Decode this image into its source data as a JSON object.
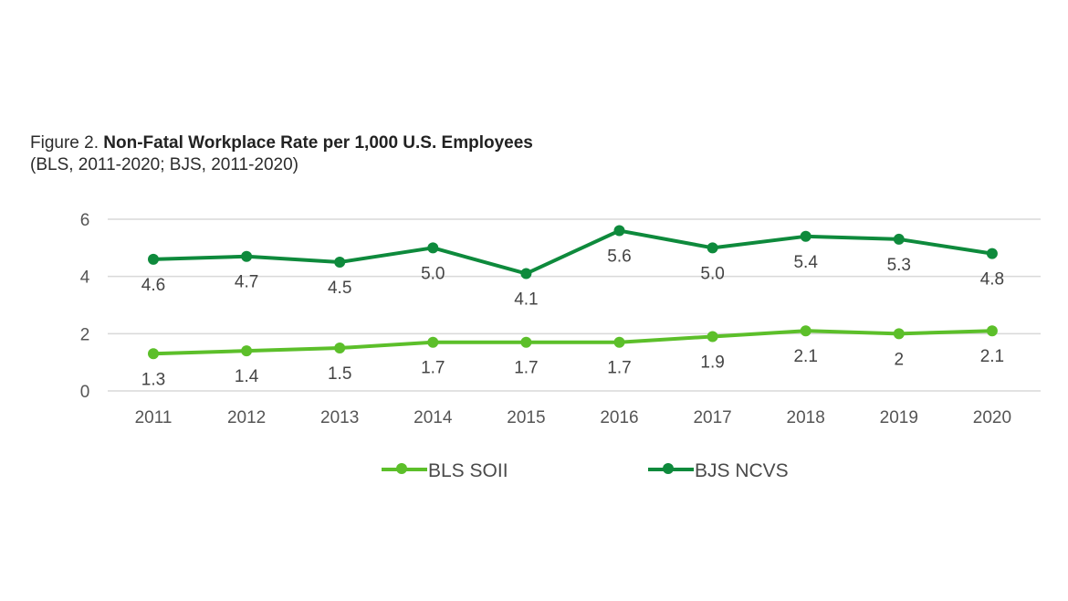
{
  "figure": {
    "prefix": "Figure 2. ",
    "title": "Non-Fatal Workplace Rate per 1,000 U.S. Employees",
    "subtitle": "(BLS, 2011-2020; BJS, 2011-2020)"
  },
  "chart_data": {
    "type": "line",
    "title": "Non-Fatal Workplace Rate per 1,000 U.S. Employees",
    "subtitle": "(BLS, 2011-2020; BJS, 2011-2020)",
    "xlabel": "",
    "ylabel": "",
    "categories": [
      "2011",
      "2012",
      "2013",
      "2014",
      "2015",
      "2016",
      "2017",
      "2018",
      "2019",
      "2020"
    ],
    "ylim": [
      0,
      6
    ],
    "yticks": [
      0,
      2,
      4,
      6
    ],
    "grid": true,
    "legend_position": "bottom",
    "series": [
      {
        "name": "BLS SOII",
        "color": "#5cbf2a",
        "values": [
          1.3,
          1.4,
          1.5,
          1.7,
          1.7,
          1.7,
          1.9,
          2.1,
          2.0,
          2.1
        ],
        "labels": [
          "1.3",
          "1.4",
          "1.5",
          "1.7",
          "1.7",
          "1.7",
          "1.9",
          "2.1",
          "2",
          "2.1"
        ]
      },
      {
        "name": "BJS NCVS",
        "color": "#0e8a3c",
        "values": [
          4.6,
          4.7,
          4.5,
          5.0,
          4.1,
          5.6,
          5.0,
          5.4,
          5.3,
          4.8
        ],
        "labels": [
          "4.6",
          "4.7",
          "4.5",
          "5.0",
          "4.1",
          "5.6",
          "5.0",
          "5.4",
          "5.3",
          "4.8"
        ]
      }
    ]
  }
}
